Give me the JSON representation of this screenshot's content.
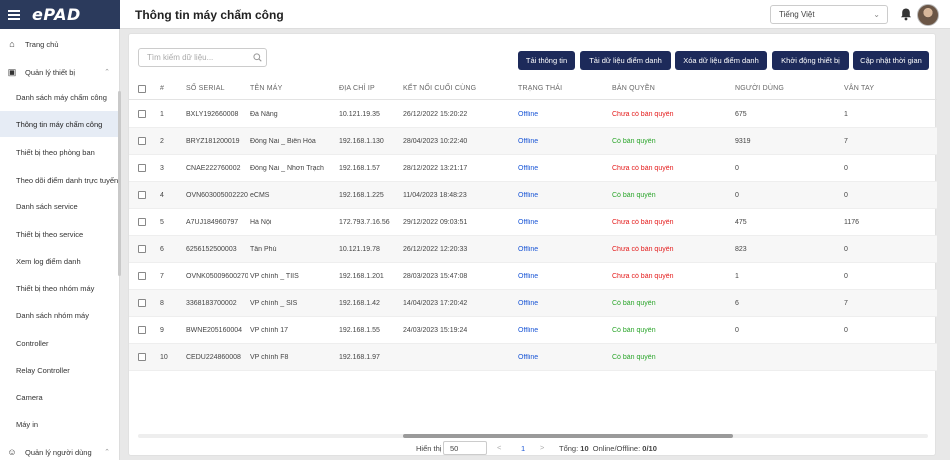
{
  "brand": {
    "logo": "ePAD"
  },
  "header": {
    "title": "Thông tin máy chấm công",
    "language": "Tiếng Việt"
  },
  "sidebar": {
    "items": [
      {
        "label": "Trang chủ",
        "level": "top",
        "icon": "home-icon"
      },
      {
        "label": "Quản lý thiết bị",
        "level": "top",
        "icon": "device-icon"
      },
      {
        "label": "Danh sách máy chấm công"
      },
      {
        "label": "Thông tin máy chấm công",
        "active": true
      },
      {
        "label": "Thiết bị theo phòng ban"
      },
      {
        "label": "Theo dõi điểm danh trực tuyến"
      },
      {
        "label": "Danh sách service"
      },
      {
        "label": "Thiết bị theo service"
      },
      {
        "label": "Xem log điểm danh"
      },
      {
        "label": "Thiết bị theo nhóm máy"
      },
      {
        "label": "Danh sách nhóm máy"
      },
      {
        "label": "Controller"
      },
      {
        "label": "Relay Controller"
      },
      {
        "label": "Camera"
      },
      {
        "label": "Máy in"
      },
      {
        "label": "Quản lý người dùng",
        "level": "top",
        "icon": "users-icon"
      }
    ]
  },
  "toolbar": {
    "search_placeholder": "Tìm kiếm dữ liệu...",
    "buttons": [
      "Tải thông tin",
      "Tải dữ liệu điểm danh",
      "Xóa dữ liệu điểm danh",
      "Khởi động thiết bị",
      "Cập nhật thời gian"
    ]
  },
  "table": {
    "columns": [
      "#",
      "SỐ SERIAL",
      "TÊN MÁY",
      "ĐỊA CHỈ IP",
      "KẾT NỐI CUỐI CÙNG",
      "TRẠNG THÁI",
      "BẢN QUYỀN",
      "NGƯỜI DÙNG",
      "VÂN TAY"
    ],
    "rows": [
      {
        "no": "1",
        "serial": "BXLY192660008",
        "name": "Đà Nẵng",
        "ip": "10.121.19.35",
        "last": "26/12/2022 15:20:22",
        "status": "Offline",
        "license": "Chưa có bản quyền",
        "licensed": false,
        "users": "675",
        "fingers": "1"
      },
      {
        "no": "2",
        "serial": "BRYZ181200019",
        "name": "Đồng Nai _ Biên Hòa",
        "ip": "192.168.1.130",
        "last": "28/04/2023 10:22:40",
        "status": "Offline",
        "license": "Có bản quyền",
        "licensed": true,
        "users": "9319",
        "fingers": "7"
      },
      {
        "no": "3",
        "serial": "CNAE222760002",
        "name": "Đồng Nai _ Nhơn Trạch",
        "ip": "192.168.1.57",
        "last": "28/12/2022 13:21:17",
        "status": "Offline",
        "license": "Chưa có bản quyền",
        "licensed": false,
        "users": "0",
        "fingers": "0"
      },
      {
        "no": "4",
        "serial": "OVN6030050022200",
        "name": "eCMS",
        "ip": "192.168.1.225",
        "last": "11/04/2023 18:48:23",
        "status": "Offline",
        "license": "Có bản quyền",
        "licensed": true,
        "users": "0",
        "fingers": "0"
      },
      {
        "no": "5",
        "serial": "A7UJ184960797",
        "name": "Hà Nội",
        "ip": "172.793.7.16.56",
        "last": "29/12/2022 09:03:51",
        "status": "Offline",
        "license": "Chưa có bản quyền",
        "licensed": false,
        "users": "475",
        "fingers": "1176"
      },
      {
        "no": "6",
        "serial": "6256152500003",
        "name": "Tân Phú",
        "ip": "10.121.19.78",
        "last": "26/12/2022 12:20:33",
        "status": "Offline",
        "license": "Chưa có bản quyền",
        "licensed": false,
        "users": "823",
        "fingers": "0"
      },
      {
        "no": "7",
        "serial": "OVNK050096002700",
        "name": "VP chính _ TIIS",
        "ip": "192.168.1.201",
        "last": "28/03/2023 15:47:08",
        "status": "Offline",
        "license": "Chưa có bản quyền",
        "licensed": false,
        "users": "1",
        "fingers": "0"
      },
      {
        "no": "8",
        "serial": "3368183700002",
        "name": "VP chính _ SIS",
        "ip": "192.168.1.42",
        "last": "14/04/2023 17:20:42",
        "status": "Offline",
        "license": "Có bản quyền",
        "licensed": true,
        "users": "6",
        "fingers": "7"
      },
      {
        "no": "9",
        "serial": "BWNE205160004",
        "name": "VP chính 17",
        "ip": "192.168.1.55",
        "last": "24/03/2023 15:19:24",
        "status": "Offline",
        "license": "Có bản quyền",
        "licensed": true,
        "users": "0",
        "fingers": "0"
      },
      {
        "no": "10",
        "serial": "CEDU224860008",
        "name": "VP chính F8",
        "ip": "192.168.1.97",
        "last": "",
        "status": "Offline",
        "license": "Có bản quyền",
        "licensed": true,
        "users": "",
        "fingers": ""
      }
    ]
  },
  "pagination": {
    "page_size_label": "Hiển thị",
    "page_size": "50",
    "prev": "<",
    "current_page": "1",
    "next": ">",
    "total_label": "Tổng:",
    "total": "10",
    "online_label": "Online/Offline:",
    "online_offline": "0/10"
  },
  "colors": {
    "brand": "#2b3a5c",
    "button": "#1d2a5a",
    "status": "#1a56d6",
    "no_license": "#e41b1b",
    "licensed": "#2aa52a"
  }
}
